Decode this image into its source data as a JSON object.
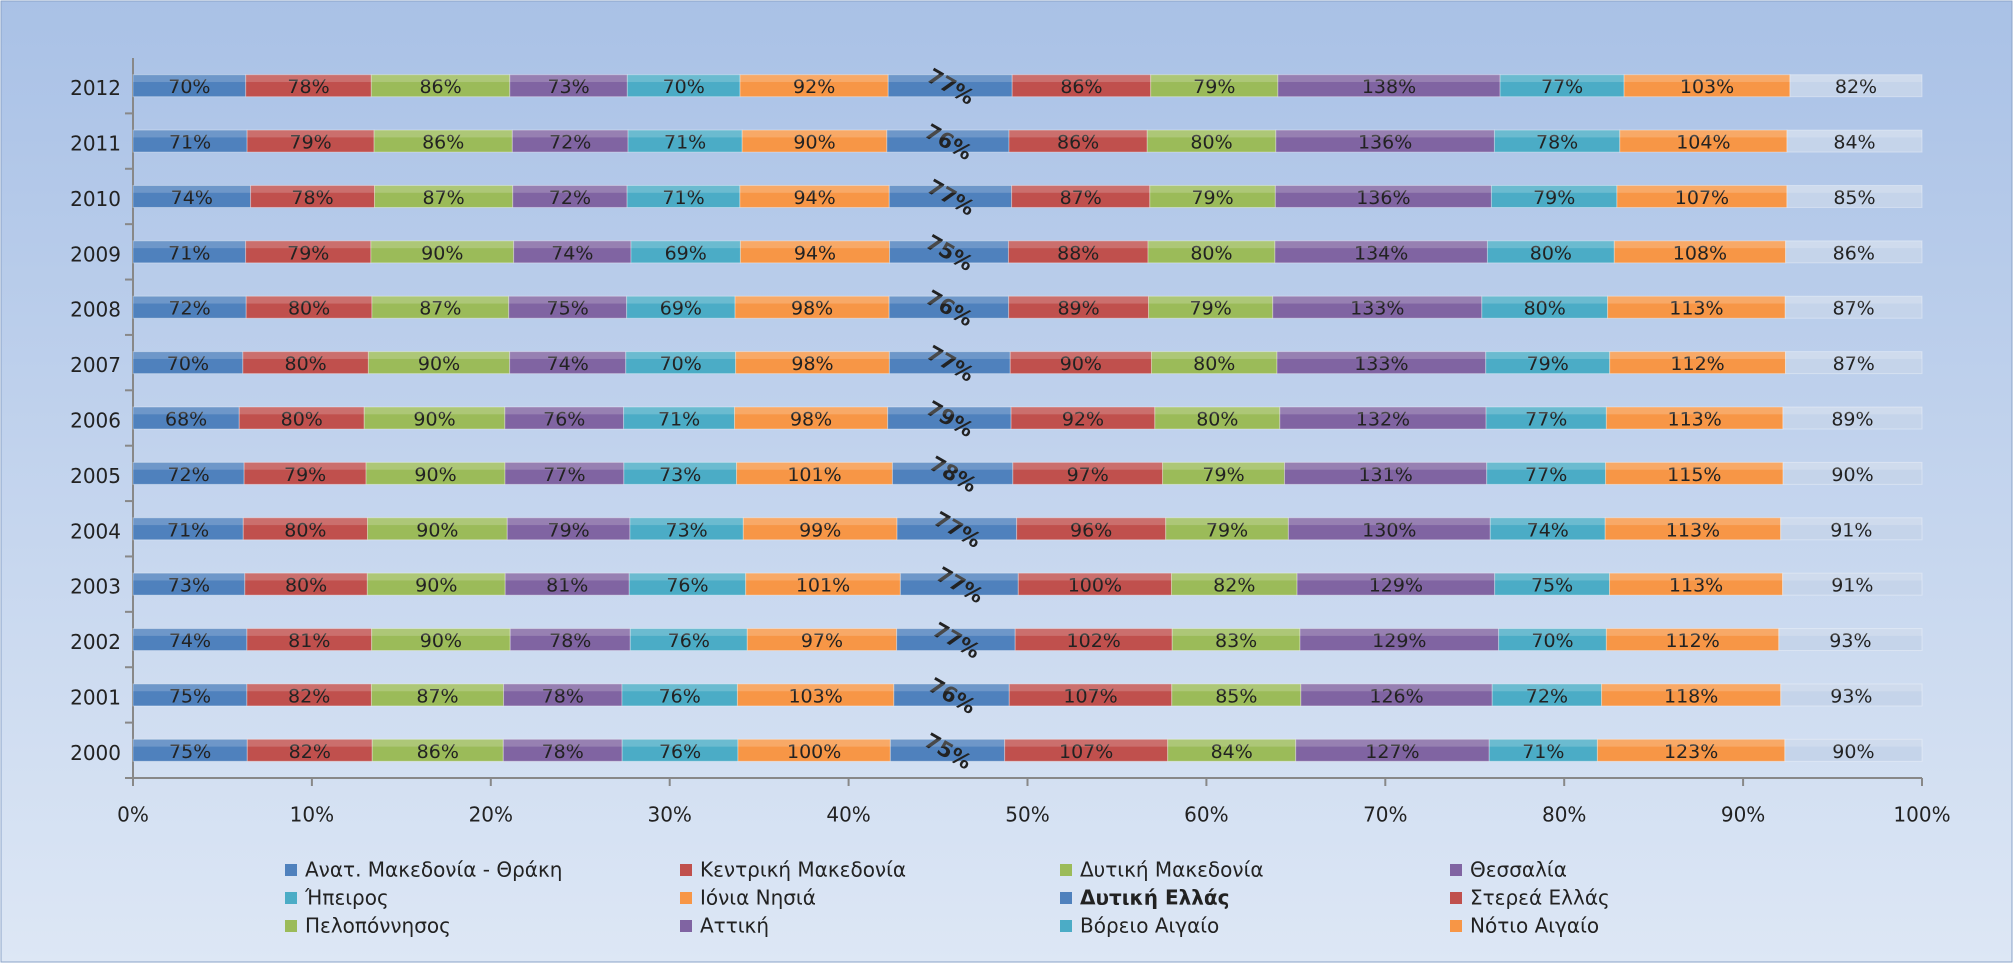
{
  "chart_data": {
    "type": "bar",
    "orientation": "horizontal",
    "stacked": "percent",
    "categories": [
      "2000",
      "2001",
      "2002",
      "2003",
      "2004",
      "2005",
      "2006",
      "2007",
      "2008",
      "2009",
      "2010",
      "2011",
      "2012"
    ],
    "xlim": [
      0,
      100
    ],
    "xticks": [
      {
        "value": 0,
        "label": "0%"
      },
      {
        "value": 10,
        "label": "10%"
      },
      {
        "value": 20,
        "label": "20%"
      },
      {
        "value": 30,
        "label": "30%"
      },
      {
        "value": 40,
        "label": "40%"
      },
      {
        "value": 50,
        "label": "50%"
      },
      {
        "value": 60,
        "label": "60%"
      },
      {
        "value": 70,
        "label": "70%"
      },
      {
        "value": 80,
        "label": "80%"
      },
      {
        "value": 90,
        "label": "90%"
      },
      {
        "value": 100,
        "label": "100%"
      }
    ],
    "grid": false,
    "legend": "bottom",
    "series": [
      {
        "name": "Ανατ. Μακεδονία - Θράκη",
        "color": "#4f81bd",
        "values": [
          75,
          75,
          74,
          73,
          71,
          72,
          68,
          70,
          72,
          71,
          74,
          71,
          70
        ],
        "value_labels": [
          "75%",
          "75%",
          "74%",
          "73%",
          "71%",
          "72%",
          "68%",
          "70%",
          "72%",
          "71%",
          "74%",
          "71%",
          "70%"
        ]
      },
      {
        "name": "Κεντρική Μακεδονία",
        "color": "#c0504d",
        "values": [
          82,
          82,
          81,
          80,
          80,
          79,
          80,
          80,
          80,
          79,
          78,
          79,
          78
        ],
        "value_labels": [
          "82%",
          "82%",
          "81%",
          "80%",
          "80%",
          "79%",
          "80%",
          "80%",
          "80%",
          "79%",
          "78%",
          "79%",
          "78%"
        ]
      },
      {
        "name": "Δυτική Μακεδονία",
        "color": "#9bbb59",
        "values": [
          86,
          87,
          90,
          90,
          90,
          90,
          90,
          90,
          87,
          90,
          87,
          86,
          86
        ],
        "value_labels": [
          "86%",
          "87%",
          "90%",
          "90%",
          "90%",
          "90%",
          "90%",
          "90%",
          "87%",
          "90%",
          "87%",
          "86%",
          "86%"
        ]
      },
      {
        "name": "Θεσσαλία",
        "color": "#8064a2",
        "values": [
          78,
          78,
          78,
          81,
          79,
          77,
          76,
          74,
          75,
          74,
          72,
          72,
          73
        ],
        "value_labels": [
          "78%",
          "78%",
          "78%",
          "81%",
          "79%",
          "77%",
          "76%",
          "74%",
          "75%",
          "74%",
          "72%",
          "72%",
          "73%"
        ]
      },
      {
        "name": "Ήπειρος",
        "color": "#4bacc6",
        "values": [
          76,
          76,
          76,
          76,
          73,
          73,
          71,
          70,
          69,
          69,
          71,
          71,
          70
        ],
        "value_labels": [
          "76%",
          "76%",
          "76%",
          "76%",
          "73%",
          "73%",
          "71%",
          "70%",
          "69%",
          "69%",
          "71%",
          "71%",
          "70%"
        ]
      },
      {
        "name": "Ιόνια Νησιά",
        "color": "#f79646",
        "values": [
          100,
          103,
          97,
          101,
          99,
          101,
          98,
          98,
          98,
          94,
          94,
          90,
          92
        ],
        "value_labels": [
          "100%",
          "103%",
          "97%",
          "101%",
          "99%",
          "101%",
          "98%",
          "98%",
          "98%",
          "94%",
          "94%",
          "90%",
          "92%"
        ]
      },
      {
        "name": "Δυτική Ελλάς",
        "color": "#4f81bd",
        "bold": true,
        "values": [
          75,
          76,
          77,
          77,
          77,
          78,
          79,
          77,
          76,
          75,
          77,
          76,
          77
        ],
        "value_labels": [
          "75%",
          "76%",
          "77%",
          "77%",
          "77%",
          "78%",
          "79%",
          "77%",
          "76%",
          "75%",
          "77%",
          "76%",
          "77%"
        ]
      },
      {
        "name": "Στερεά Ελλάς",
        "color": "#c0504d",
        "values": [
          107,
          107,
          102,
          100,
          96,
          97,
          92,
          90,
          89,
          88,
          87,
          86,
          86
        ],
        "value_labels": [
          "107%",
          "107%",
          "102%",
          "100%",
          "96%",
          "97%",
          "92%",
          "90%",
          "89%",
          "88%",
          "87%",
          "86%",
          "86%"
        ]
      },
      {
        "name": "Πελοπόννησος",
        "color": "#9bbb59",
        "values": [
          84,
          85,
          83,
          82,
          79,
          79,
          80,
          80,
          79,
          80,
          79,
          80,
          79
        ],
        "value_labels": [
          "84%",
          "85%",
          "83%",
          "82%",
          "79%",
          "79%",
          "80%",
          "80%",
          "79%",
          "80%",
          "79%",
          "80%",
          "79%"
        ]
      },
      {
        "name": "Αττική",
        "color": "#8064a2",
        "values": [
          127,
          126,
          129,
          129,
          130,
          131,
          132,
          133,
          133,
          134,
          136,
          136,
          138
        ],
        "value_labels": [
          "127%",
          "126%",
          "129%",
          "129%",
          "130%",
          "131%",
          "132%",
          "133%",
          "133%",
          "134%",
          "136%",
          "136%",
          "138%"
        ]
      },
      {
        "name": "Βόρειο Αιγαίο",
        "color": "#4bacc6",
        "values": [
          71,
          72,
          70,
          75,
          74,
          77,
          77,
          79,
          80,
          80,
          79,
          78,
          77
        ],
        "value_labels": [
          "71%",
          "72%",
          "70%",
          "75%",
          "74%",
          "77%",
          "77%",
          "79%",
          "80%",
          "80%",
          "79%",
          "78%",
          "77%"
        ]
      },
      {
        "name": "Νότιο Αιγαίο",
        "color": "#f79646",
        "values": [
          123,
          118,
          112,
          113,
          113,
          115,
          113,
          112,
          113,
          108,
          107,
          104,
          103
        ],
        "value_labels": [
          "123%",
          "118%",
          "112%",
          "113%",
          "113%",
          "115%",
          "113%",
          "112%",
          "113%",
          "108%",
          "107%",
          "104%",
          "103%"
        ]
      },
      {
        "color": "#c5d4ea",
        "values": [
          90,
          93,
          93,
          91,
          91,
          90,
          89,
          87,
          87,
          86,
          85,
          84,
          82
        ],
        "value_labels": [
          "90%",
          "93%",
          "93%",
          "91%",
          "91%",
          "90%",
          "89%",
          "87%",
          "87%",
          "86%",
          "85%",
          "84%",
          "82%"
        ]
      }
    ]
  }
}
